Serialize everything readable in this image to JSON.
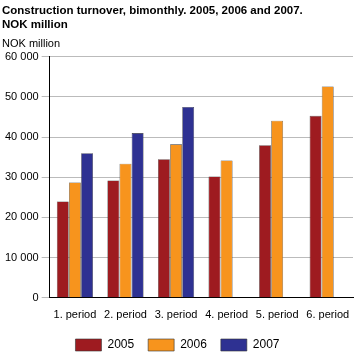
{
  "chart_data": {
    "type": "bar",
    "title": [
      "Construction turnover, bimonthly. 2005, 2006 and 2007.",
      "NOK million"
    ],
    "y_label": "NOK million",
    "categories": [
      "1. period",
      "2. period",
      "3. period",
      "4. period",
      "5. period",
      "6. period"
    ],
    "series": [
      {
        "name": "2005",
        "color": "#9e1b20",
        "values": [
          24000,
          29200,
          34500,
          30200,
          38000,
          45300
        ]
      },
      {
        "name": "2006",
        "color": "#f7941d",
        "values": [
          28700,
          33400,
          38200,
          34200,
          44100,
          52600
        ]
      },
      {
        "name": "2007",
        "color": "#2e3192",
        "values": [
          36000,
          41000,
          47500,
          null,
          null,
          null
        ]
      }
    ],
    "ylim": [
      0,
      60000
    ],
    "yticks": [
      0,
      {
        "value": 10000,
        "label": "10 000"
      },
      {
        "value": 20000,
        "label": "20 000"
      },
      {
        "value": 30000,
        "label": "30 000"
      },
      {
        "value": 40000,
        "label": "40 000"
      },
      {
        "value": 50000,
        "label": "50 000"
      },
      {
        "value": 60000,
        "label": "60 000"
      }
    ],
    "grid": true,
    "legend": "bottom"
  }
}
